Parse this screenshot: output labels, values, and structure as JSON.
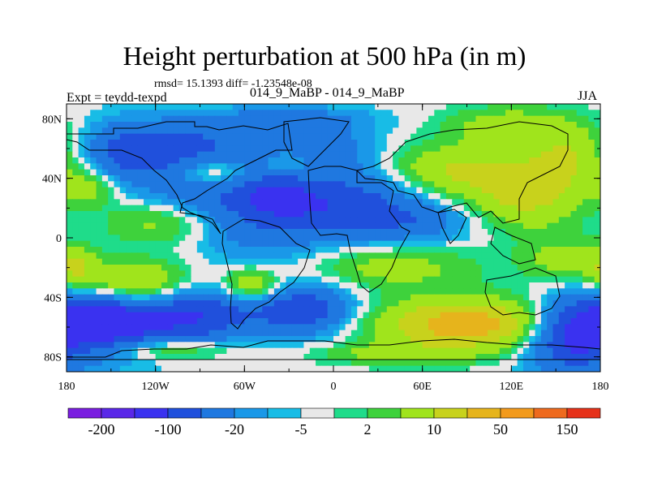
{
  "header": {
    "title": "Height perturbation at 500 hPa (in m)",
    "stats": "rmsd= 15.1393 diff= -1.23548e-08",
    "left_label": "Expt = teydd-texpd",
    "center_label": "014_9_MaBP - 014_9_MaBP",
    "right_label": "JJA"
  },
  "map": {
    "lon_range": [
      -180,
      180
    ],
    "lat_range": [
      -90,
      90
    ],
    "lat_ticks": [
      {
        "value": 80,
        "label": "80N"
      },
      {
        "value": 40,
        "label": "40N"
      },
      {
        "value": 0,
        "label": "0"
      },
      {
        "value": -40,
        "label": "40S"
      },
      {
        "value": -80,
        "label": "80S"
      }
    ],
    "lon_ticks": [
      {
        "value": -180,
        "label": "180"
      },
      {
        "value": -120,
        "label": "120W"
      },
      {
        "value": -60,
        "label": "60W"
      },
      {
        "value": 0,
        "label": "0"
      },
      {
        "value": 60,
        "label": "60E"
      },
      {
        "value": 120,
        "label": "120E"
      },
      {
        "value": 180,
        "label": "180"
      }
    ]
  },
  "colorbar": {
    "colors": [
      "#7a1ee0",
      "#5a28e8",
      "#3a32f0",
      "#2050dc",
      "#1f78e0",
      "#1a98e8",
      "#18bce6",
      "#e8e8e8",
      "#1fdc8a",
      "#3ed23c",
      "#a0e41c",
      "#c8d21c",
      "#e6b41c",
      "#f29a1c",
      "#ee6a1e",
      "#e6321a"
    ],
    "labels": [
      "-200",
      "-100",
      "-20",
      "-5",
      "2",
      "10",
      "50",
      "150"
    ]
  },
  "fields": [
    {
      "lon": -155,
      "lat": -55,
      "amp": -40,
      "rx": 26,
      "ry": 16
    },
    {
      "lon": -95,
      "lat": -52,
      "amp": -30,
      "rx": 30,
      "ry": 14
    },
    {
      "lon": -20,
      "lat": -48,
      "amp": -28,
      "rx": 24,
      "ry": 12
    },
    {
      "lon": 160,
      "lat": -65,
      "amp": -35,
      "rx": 22,
      "ry": 18
    },
    {
      "lon": 90,
      "lat": -58,
      "amp": 38,
      "rx": 42,
      "ry": 12
    },
    {
      "lon": -135,
      "lat": -32,
      "amp": 30,
      "rx": 26,
      "ry": 11
    },
    {
      "lon": -55,
      "lat": -32,
      "amp": 22,
      "rx": 14,
      "ry": 8
    },
    {
      "lon": -175,
      "lat": -20,
      "amp": 20,
      "rx": 12,
      "ry": 10
    },
    {
      "lon": -110,
      "lat": -75,
      "amp": 16,
      "rx": 30,
      "ry": 5
    },
    {
      "lon": 40,
      "lat": -78,
      "amp": 12,
      "rx": 35,
      "ry": 5
    },
    {
      "lon": 40,
      "lat": -20,
      "amp": 14,
      "rx": 40,
      "ry": 10
    },
    {
      "lon": -100,
      "lat": 60,
      "amp": -24,
      "rx": 40,
      "ry": 13
    },
    {
      "lon": -10,
      "lat": 60,
      "amp": -16,
      "rx": 26,
      "ry": 12
    },
    {
      "lon": 10,
      "lat": 22,
      "amp": -26,
      "rx": 34,
      "ry": 16
    },
    {
      "lon": -40,
      "lat": 30,
      "amp": -18,
      "rx": 20,
      "ry": 12
    },
    {
      "lon": -90,
      "lat": 30,
      "amp": -14,
      "rx": 26,
      "ry": 10
    },
    {
      "lon": -50,
      "lat": 8,
      "amp": -14,
      "rx": 30,
      "ry": 18
    },
    {
      "lon": -140,
      "lat": 55,
      "amp": -14,
      "rx": 20,
      "ry": 16
    },
    {
      "lon": -80,
      "lat": 44,
      "amp": 16,
      "rx": 16,
      "ry": 8
    },
    {
      "lon": -30,
      "lat": 50,
      "amp": 14,
      "rx": 14,
      "ry": 7
    },
    {
      "lon": -165,
      "lat": 34,
      "amp": 14,
      "rx": 14,
      "ry": 9
    },
    {
      "lon": 80,
      "lat": 45,
      "amp": 20,
      "rx": 30,
      "ry": 12
    },
    {
      "lon": 130,
      "lat": 30,
      "amp": 24,
      "rx": 26,
      "ry": 16
    },
    {
      "lon": 160,
      "lat": 55,
      "amp": 18,
      "rx": 20,
      "ry": 14
    },
    {
      "lon": 120,
      "lat": 75,
      "amp": 16,
      "rx": 30,
      "ry": 9
    },
    {
      "lon": -30,
      "lat": 80,
      "amp": -12,
      "rx": 40,
      "ry": 6
    },
    {
      "lon": 60,
      "lat": 10,
      "amp": -12,
      "rx": 25,
      "ry": 10
    },
    {
      "lon": -120,
      "lat": 10,
      "amp": 12,
      "rx": 25,
      "ry": 10
    },
    {
      "lon": 150,
      "lat": -15,
      "amp": 12,
      "rx": 18,
      "ry": 12
    }
  ]
}
